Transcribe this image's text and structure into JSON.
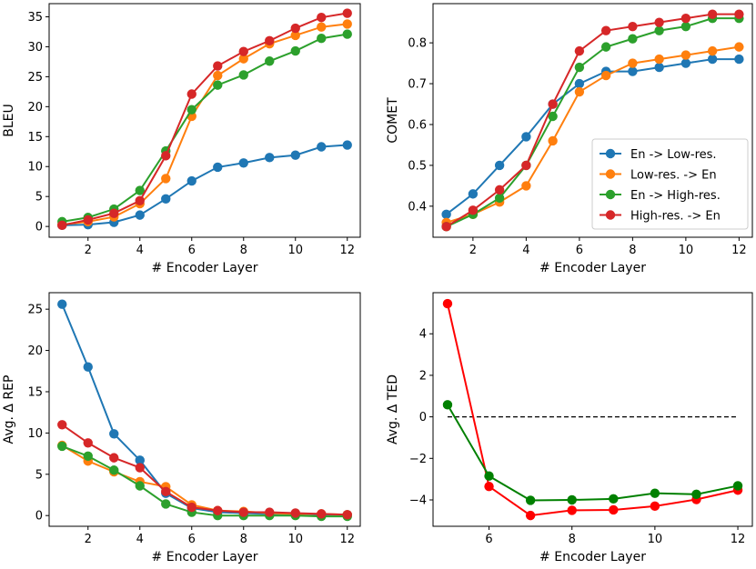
{
  "colors": {
    "blue": "#1f77b4",
    "orange": "#ff7f0e",
    "green": "#2ca02c",
    "red": "#d62728",
    "pure_red": "#ff0000",
    "pure_green": "#008000"
  },
  "chart_data": [
    {
      "id": "bleu",
      "type": "line",
      "xlabel": "# Encoder Layer",
      "ylabel": "BLEU",
      "xlim": [
        0.5,
        12.5
      ],
      "ylim": [
        -1.8,
        37.2
      ],
      "xticks": [
        2,
        4,
        6,
        8,
        10,
        12
      ],
      "yticks": [
        0,
        5,
        10,
        15,
        20,
        25,
        30,
        35
      ],
      "grid": false,
      "x": [
        1,
        2,
        3,
        4,
        5,
        6,
        7,
        8,
        9,
        10,
        11,
        12
      ],
      "series": [
        {
          "color": "blue",
          "values": [
            0.2,
            0.3,
            0.7,
            1.9,
            4.6,
            7.6,
            9.9,
            10.6,
            11.5,
            11.9,
            13.3,
            13.6
          ]
        },
        {
          "color": "orange",
          "values": [
            0.3,
            0.8,
            1.6,
            3.8,
            8.0,
            18.4,
            25.2,
            28.0,
            30.5,
            31.9,
            33.3,
            33.8
          ]
        },
        {
          "color": "green",
          "values": [
            0.8,
            1.5,
            2.9,
            6.0,
            12.6,
            19.5,
            23.6,
            25.3,
            27.6,
            29.3,
            31.4,
            32.1
          ]
        },
        {
          "color": "red",
          "values": [
            0.2,
            1.1,
            2.2,
            4.3,
            11.8,
            22.1,
            26.8,
            29.2,
            31.0,
            33.1,
            34.9,
            35.6
          ]
        }
      ]
    },
    {
      "id": "comet",
      "type": "line",
      "xlabel": "# Encoder Layer",
      "ylabel": "COMET",
      "xlim": [
        0.5,
        12.5
      ],
      "ylim": [
        0.324,
        0.896
      ],
      "xticks": [
        2,
        4,
        6,
        8,
        10,
        12
      ],
      "yticks": [
        0.4,
        0.5,
        0.6,
        0.7,
        0.8
      ],
      "ytick_labels": [
        "0.4",
        "0.5",
        "0.6",
        "0.7",
        "0.8"
      ],
      "grid": false,
      "legend": {
        "placement": "center-right",
        "entries": [
          {
            "label": "En -> Low-res.",
            "color": "blue"
          },
          {
            "label": "Low-res. -> En",
            "color": "orange"
          },
          {
            "label": "En -> High-res.",
            "color": "green"
          },
          {
            "label": "High-res. -> En",
            "color": "red"
          }
        ]
      },
      "x": [
        1,
        2,
        3,
        4,
        5,
        6,
        7,
        8,
        9,
        10,
        11,
        12
      ],
      "series": [
        {
          "color": "blue",
          "values": [
            0.38,
            0.43,
            0.5,
            0.57,
            0.65,
            0.7,
            0.73,
            0.73,
            0.74,
            0.75,
            0.76,
            0.76
          ]
        },
        {
          "color": "orange",
          "values": [
            0.36,
            0.38,
            0.41,
            0.45,
            0.56,
            0.68,
            0.72,
            0.75,
            0.76,
            0.77,
            0.78,
            0.79
          ]
        },
        {
          "color": "green",
          "values": [
            0.35,
            0.38,
            0.42,
            0.5,
            0.62,
            0.74,
            0.79,
            0.81,
            0.83,
            0.84,
            0.86,
            0.86
          ]
        },
        {
          "color": "red",
          "values": [
            0.35,
            0.39,
            0.44,
            0.5,
            0.65,
            0.78,
            0.83,
            0.84,
            0.85,
            0.86,
            0.87,
            0.87
          ]
        }
      ]
    },
    {
      "id": "rep",
      "type": "line",
      "xlabel": "# Encoder Layer",
      "ylabel": "Avg. Δ REP",
      "xlim": [
        0.5,
        12.5
      ],
      "ylim": [
        -1.3,
        27.0
      ],
      "xticks": [
        2,
        4,
        6,
        8,
        10,
        12
      ],
      "yticks": [
        0,
        5,
        10,
        15,
        20,
        25
      ],
      "grid": false,
      "x": [
        1,
        2,
        3,
        4,
        5,
        6,
        7,
        8,
        9,
        10,
        11,
        12
      ],
      "series": [
        {
          "color": "blue",
          "values": [
            25.6,
            18.0,
            9.9,
            6.7,
            2.7,
            0.9,
            0.4,
            0.3,
            0.2,
            0.2,
            0.1,
            0.1
          ]
        },
        {
          "color": "orange",
          "values": [
            8.5,
            6.6,
            5.3,
            4.1,
            3.5,
            1.3,
            0.6,
            0.5,
            0.3,
            0.2,
            0.2,
            0.1
          ]
        },
        {
          "color": "green",
          "values": [
            8.4,
            7.2,
            5.5,
            3.6,
            1.4,
            0.4,
            0.0,
            0.0,
            0.0,
            0.0,
            -0.1,
            -0.1
          ]
        },
        {
          "color": "red",
          "values": [
            11.0,
            8.8,
            7.0,
            5.8,
            2.9,
            1.0,
            0.6,
            0.4,
            0.4,
            0.3,
            0.2,
            0.1
          ]
        }
      ]
    },
    {
      "id": "ted",
      "type": "line",
      "xlabel": "# Encoder Layer",
      "ylabel": "Avg. Δ TED",
      "xlim": [
        4.65,
        12.35
      ],
      "ylim": [
        -5.27,
        5.98
      ],
      "xticks": [
        6,
        8,
        10,
        12
      ],
      "yticks": [
        -4,
        -2,
        0,
        2,
        4
      ],
      "ytick_labels": [
        "−4",
        "−2",
        "0",
        "2",
        "4"
      ],
      "grid": false,
      "reference_line": {
        "y": 0,
        "style": "dashed",
        "color": "#000000"
      },
      "x": [
        5,
        6,
        7,
        8,
        9,
        10,
        11,
        12
      ],
      "series": [
        {
          "color": "pure_red",
          "values": [
            5.45,
            -3.35,
            -4.75,
            -4.5,
            -4.48,
            -4.3,
            -3.98,
            -3.53
          ]
        },
        {
          "color": "pure_green",
          "values": [
            0.58,
            -2.85,
            -4.02,
            -4.0,
            -3.95,
            -3.68,
            -3.73,
            -3.32
          ]
        }
      ]
    }
  ]
}
